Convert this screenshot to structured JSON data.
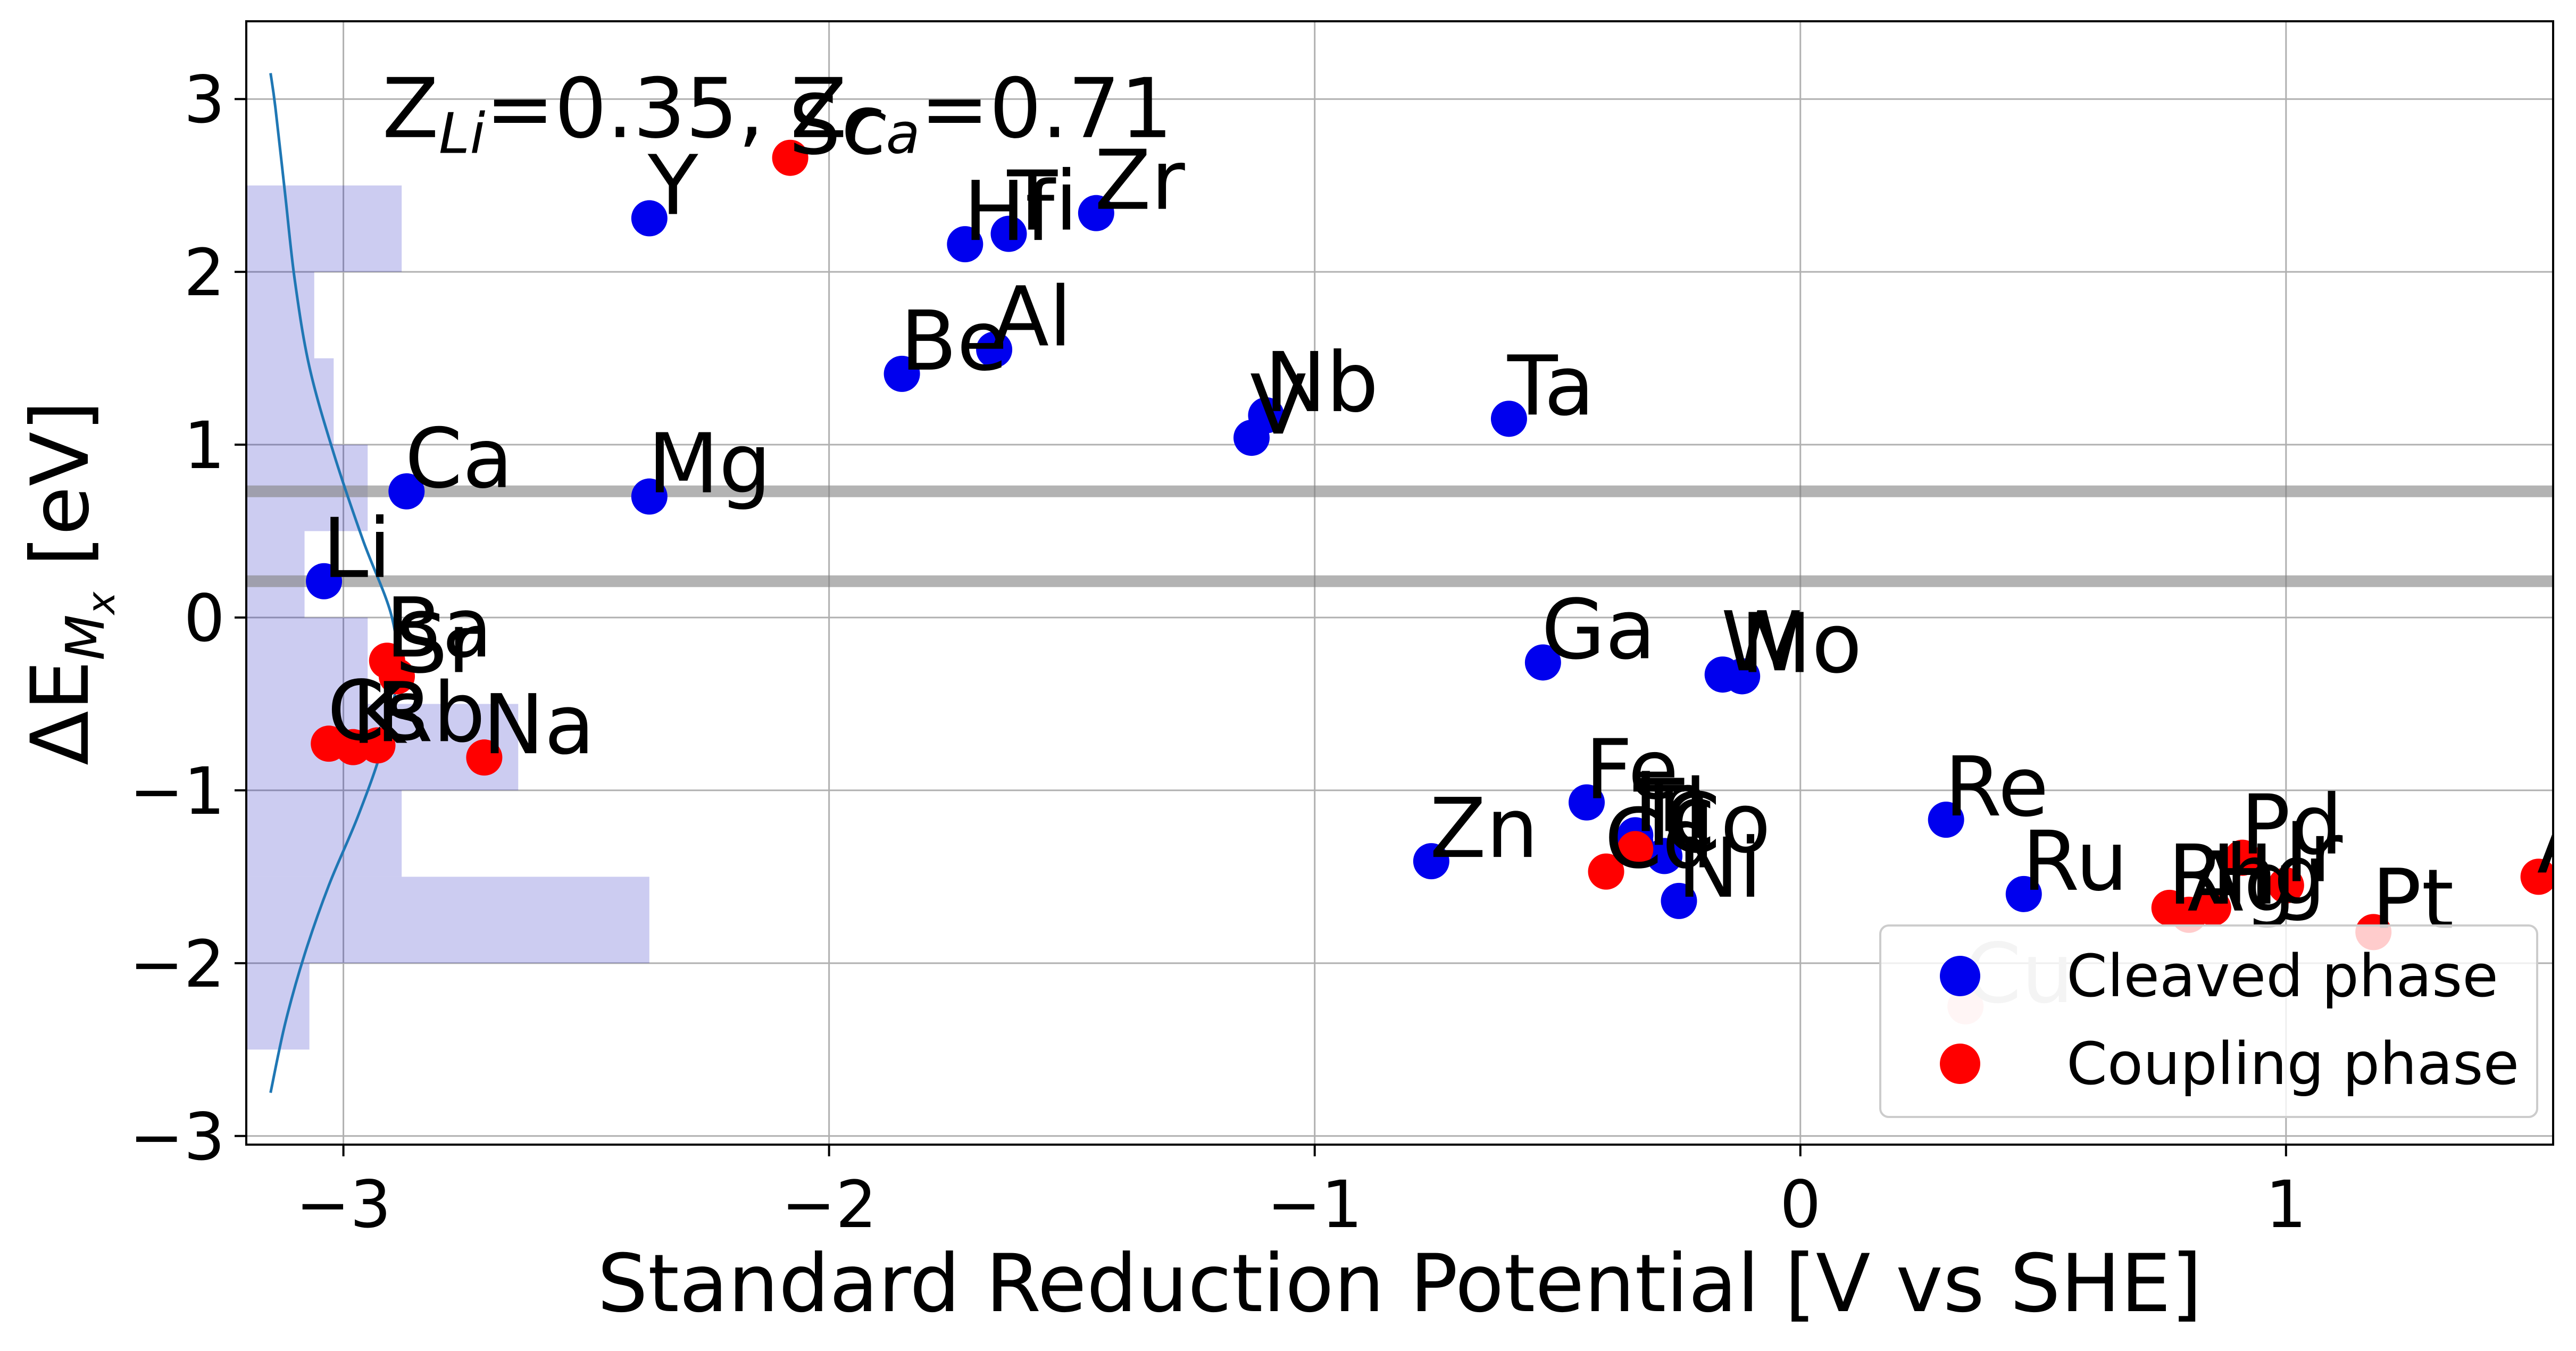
{
  "chart_data": {
    "type": "scatter",
    "title": "",
    "xlabel": "Standard Reduction Potential [V vs SHE]",
    "ylabel": "ΔE",
    "ylabel_sub": "M",
    "ylabel_subsub": "x",
    "ylabel_unit": "[eV]",
    "xlim": [
      -3.2,
      1.55
    ],
    "ylim": [
      -3.05,
      3.45
    ],
    "xticks": [
      -3,
      -2,
      -1,
      0,
      1
    ],
    "xtick_labels": [
      "−3",
      "−2",
      "−1",
      "0",
      "1"
    ],
    "yticks": [
      -3,
      -2,
      -1,
      0,
      1,
      2,
      3
    ],
    "ytick_labels": [
      "−3",
      "−2",
      "−1",
      "0",
      "1",
      "2",
      "3"
    ],
    "grid": true,
    "legend_position": "lower-right",
    "annotation": {
      "label": "Z",
      "li_sub": "Li",
      "li_value": "=0.35, ",
      "ca_sub": "Ca",
      "ca_value": "=0.71",
      "overlap": "Sc",
      "x": -2.92,
      "y": 2.78
    },
    "hlines": [
      0.73,
      0.21
    ],
    "histogram": {
      "orientation": "horizontal",
      "bin_edges": [
        -2.5,
        -2.0,
        -1.5,
        -1.0,
        -0.5,
        0.0,
        0.5,
        1.0,
        1.5,
        2.0,
        2.5
      ],
      "values": [
        0.13,
        0.83,
        0.32,
        0.56,
        0.25,
        0.12,
        0.25,
        0.18,
        0.14,
        0.32
      ]
    },
    "density_curve": {
      "x": [
        -3.15,
        -3.12,
        -3.08,
        -3.03,
        -2.97,
        -2.92,
        -2.89,
        -2.9,
        -2.96,
        -3.02,
        -3.07,
        -3.1,
        -3.12,
        -3.14,
        -3.15
      ],
      "y": [
        -2.75,
        -2.35,
        -1.95,
        -1.55,
        -1.15,
        -0.75,
        -0.35,
        0.0,
        0.45,
        0.95,
        1.45,
        1.95,
        2.45,
        2.95,
        3.15
      ]
    },
    "series": [
      {
        "name": "Cleaved phase",
        "color": "#0000ee",
        "points": [
          {
            "label": "Li",
            "x": -3.04,
            "y": 0.21
          },
          {
            "label": "Ca",
            "x": -2.87,
            "y": 0.73
          },
          {
            "label": "Mg",
            "x": -2.37,
            "y": 0.7
          },
          {
            "label": "Y",
            "x": -2.37,
            "y": 2.31
          },
          {
            "label": "Be",
            "x": -1.85,
            "y": 1.41
          },
          {
            "label": "Al",
            "x": -1.66,
            "y": 1.55
          },
          {
            "label": "Hf",
            "x": -1.72,
            "y": 2.16
          },
          {
            "label": "Ti",
            "x": -1.63,
            "y": 2.22
          },
          {
            "label": "Zr",
            "x": -1.45,
            "y": 2.34
          },
          {
            "label": "V",
            "x": -1.13,
            "y": 1.04
          },
          {
            "label": "Nb",
            "x": -1.1,
            "y": 1.17
          },
          {
            "label": "Ta",
            "x": -0.6,
            "y": 1.15
          },
          {
            "label": "Zn",
            "x": -0.76,
            "y": -1.41
          },
          {
            "label": "Ga",
            "x": -0.53,
            "y": -0.26
          },
          {
            "label": "Fe",
            "x": -0.44,
            "y": -1.07
          },
          {
            "label": "In",
            "x": -0.34,
            "y": -1.26
          },
          {
            "label": "Tl",
            "x": -0.34,
            "y": -1.3
          },
          {
            "label": "Co",
            "x": -0.28,
            "y": -1.38
          },
          {
            "label": "Ni",
            "x": -0.25,
            "y": -1.64
          },
          {
            "label": "W",
            "x": -0.16,
            "y": -0.33
          },
          {
            "label": "Mo",
            "x": -0.12,
            "y": -0.34
          },
          {
            "label": "Re",
            "x": 0.3,
            "y": -1.17
          },
          {
            "label": "Ru",
            "x": 0.46,
            "y": -1.6
          }
        ]
      },
      {
        "name": "Coupling phase",
        "color": "#ff0000",
        "points": [
          {
            "label": "Sc",
            "x": -2.08,
            "y": 2.66
          },
          {
            "label": "Ba",
            "x": -2.91,
            "y": -0.25
          },
          {
            "label": "Sr",
            "x": -2.89,
            "y": -0.34
          },
          {
            "label": "Cs",
            "x": -3.03,
            "y": -0.73
          },
          {
            "label": "K",
            "x": -2.98,
            "y": -0.75
          },
          {
            "label": "Rb",
            "x": -2.93,
            "y": -0.74
          },
          {
            "label": "Na",
            "x": -2.71,
            "y": -0.81
          },
          {
            "label": "Cd",
            "x": -0.4,
            "y": -1.47
          },
          {
            "label": "Tc",
            "x": -0.34,
            "y": -1.34
          },
          {
            "label": "Rh",
            "x": 0.76,
            "y": -1.68
          },
          {
            "label": "Ag",
            "x": 0.8,
            "y": -1.72
          },
          {
            "label": "Hg",
            "x": 0.85,
            "y": -1.68
          },
          {
            "label": "Pd",
            "x": 0.91,
            "y": -1.39
          },
          {
            "label": "Ir",
            "x": 1.0,
            "y": -1.55
          },
          {
            "label": "Pt",
            "x": 1.18,
            "y": -1.82
          },
          {
            "label": "Au",
            "x": 1.52,
            "y": -1.5
          }
        ]
      },
      {
        "name": "",
        "color": "#ffcccc",
        "faded": true,
        "points": [
          {
            "label": "Cu",
            "x": 0.34,
            "y": -2.25
          }
        ]
      }
    ]
  }
}
